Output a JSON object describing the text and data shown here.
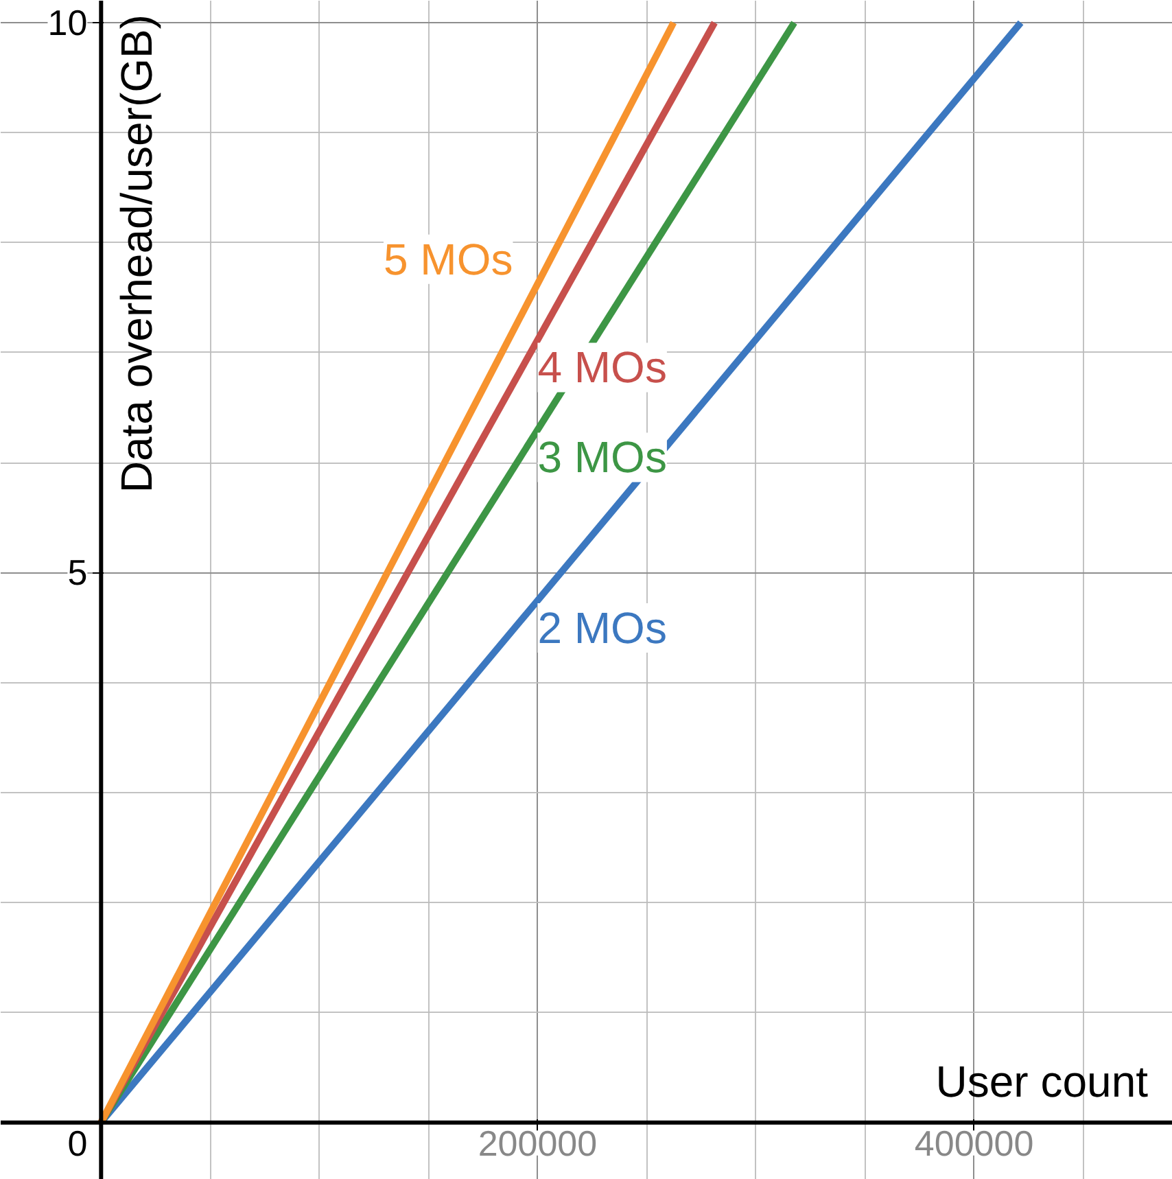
{
  "chart_data": {
    "type": "line",
    "xlabel": "User count",
    "ylabel": "Data overhead/user(GB)",
    "xlim": [
      -46000,
      491000
    ],
    "ylim": [
      -0.52,
      10.2
    ],
    "xticks": [
      200000,
      400000
    ],
    "yticks": [
      0,
      5,
      10
    ],
    "grid": true,
    "marker": "none",
    "line_style": "solid",
    "series": [
      {
        "name": "2 MOs",
        "color": "#3c78c0",
        "x": [
          0,
          421400
        ],
        "values": [
          0,
          10
        ]
      },
      {
        "name": "3 MOs",
        "color": "#3d9645",
        "x": [
          0,
          317600
        ],
        "values": [
          0,
          10
        ]
      },
      {
        "name": "4 MOs",
        "color": "#c7504c",
        "x": [
          0,
          281100
        ],
        "values": [
          0,
          10
        ]
      },
      {
        "name": "5 MOs",
        "color": "#f7932e",
        "x": [
          0,
          262300
        ],
        "values": [
          0,
          10
        ]
      }
    ]
  }
}
